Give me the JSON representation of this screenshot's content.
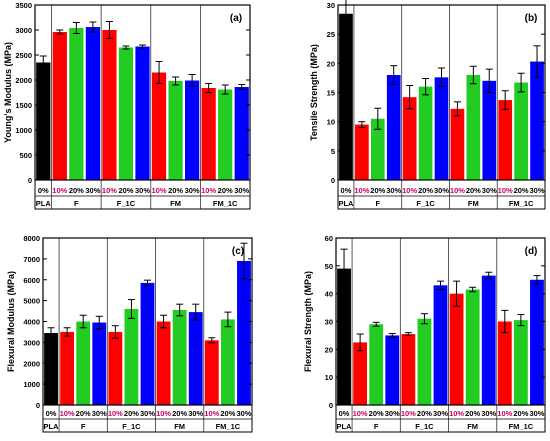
{
  "chart_data": [
    {
      "panel": "(a)",
      "type": "bar",
      "ylabel": "Young's Modulus (MPa)",
      "ylim": [
        0,
        3500
      ],
      "yticks": [
        0,
        500,
        1000,
        1500,
        2000,
        2500,
        3000,
        3500
      ],
      "pct_labels": [
        "0%",
        "10%",
        "20%",
        "30%",
        "10%",
        "20%",
        "30%",
        "10%",
        "20%",
        "30%",
        "10%",
        "20%",
        "30%"
      ],
      "groups": [
        "PLA",
        "F",
        "F_1C",
        "FM",
        "FM_1C"
      ],
      "colors": [
        "#000000",
        "#ff0000",
        "#22cc22",
        "#0000ff",
        "#ff0000",
        "#22cc22",
        "#0000ff",
        "#ff0000",
        "#22cc22",
        "#0000ff",
        "#ff0000",
        "#22cc22",
        "#0000ff"
      ],
      "values": [
        2350,
        2960,
        3040,
        3060,
        3000,
        2650,
        2670,
        2150,
        1980,
        1990,
        1840,
        1810,
        1860
      ],
      "errors": [
        130,
        40,
        110,
        100,
        170,
        30,
        30,
        220,
        80,
        120,
        90,
        90,
        50
      ]
    },
    {
      "panel": "(b)",
      "type": "bar",
      "ylabel": "Tensile Strength (MPa)",
      "ylim": [
        0,
        30
      ],
      "yticks": [
        0,
        5,
        10,
        15,
        20,
        25,
        30
      ],
      "pct_labels": [
        "0%",
        "10%",
        "20%",
        "30%",
        "10%",
        "20%",
        "30%",
        "10%",
        "20%",
        "30%",
        "10%",
        "20%",
        "30%"
      ],
      "groups": [
        "PLA",
        "F",
        "F_1C",
        "FM",
        "FM_1C"
      ],
      "colors": [
        "#000000",
        "#ff0000",
        "#22cc22",
        "#0000ff",
        "#ff0000",
        "#22cc22",
        "#0000ff",
        "#ff0000",
        "#22cc22",
        "#0000ff",
        "#ff0000",
        "#22cc22",
        "#0000ff"
      ],
      "values": [
        28.5,
        9.5,
        10.5,
        18,
        14.2,
        16,
        17.6,
        12.2,
        18,
        17,
        13.7,
        16.7,
        20.3
      ],
      "errors": [
        2.5,
        0.5,
        1.8,
        1.6,
        2.0,
        1.4,
        1.6,
        1.2,
        1.5,
        2.0,
        1.6,
        1.6,
        2.7
      ]
    },
    {
      "panel": "(c)",
      "type": "bar",
      "ylabel": "Flexural Modulus (MPa)",
      "ylim": [
        0,
        8000
      ],
      "yticks": [
        0,
        1000,
        2000,
        3000,
        4000,
        5000,
        6000,
        7000,
        8000
      ],
      "pct_labels": [
        "0%",
        "10%",
        "20%",
        "30%",
        "10%",
        "20%",
        "30%",
        "10%",
        "20%",
        "30%",
        "10%",
        "20%",
        "30%"
      ],
      "groups": [
        "PLA",
        "F",
        "F_1C",
        "FM",
        "FM_1C"
      ],
      "colors": [
        "#000000",
        "#ff0000",
        "#22cc22",
        "#0000ff",
        "#ff0000",
        "#22cc22",
        "#0000ff",
        "#ff0000",
        "#22cc22",
        "#0000ff",
        "#ff0000",
        "#22cc22",
        "#0000ff"
      ],
      "values": [
        3450,
        3500,
        4000,
        3950,
        3500,
        4600,
        5850,
        4000,
        4550,
        4450,
        3100,
        4100,
        6900
      ],
      "errors": [
        250,
        200,
        300,
        300,
        300,
        450,
        130,
        300,
        280,
        380,
        120,
        350,
        850
      ]
    },
    {
      "panel": "(d)",
      "type": "bar",
      "ylabel": "Flexural Strength (MPa)",
      "ylim": [
        0,
        60
      ],
      "yticks": [
        0,
        10,
        20,
        30,
        40,
        50,
        60
      ],
      "pct_labels": [
        "0%",
        "10%",
        "20%",
        "30%",
        "10%",
        "20%",
        "30%",
        "10%",
        "20%",
        "30%",
        "10%",
        "20%",
        "30%"
      ],
      "groups": [
        "PLA",
        "F",
        "F_1C",
        "FM",
        "FM_1C"
      ],
      "colors": [
        "#000000",
        "#ff0000",
        "#22cc22",
        "#0000ff",
        "#ff0000",
        "#22cc22",
        "#0000ff",
        "#ff0000",
        "#22cc22",
        "#0000ff",
        "#ff0000",
        "#22cc22",
        "#0000ff"
      ],
      "values": [
        49,
        22.5,
        29,
        25,
        25.5,
        31,
        43,
        40,
        41.5,
        46.5,
        30,
        30.5,
        45
      ],
      "errors": [
        7,
        3,
        0.7,
        0.7,
        0.5,
        1.8,
        1.5,
        4.5,
        0.8,
        1.2,
        4,
        2,
        1.5
      ]
    }
  ]
}
